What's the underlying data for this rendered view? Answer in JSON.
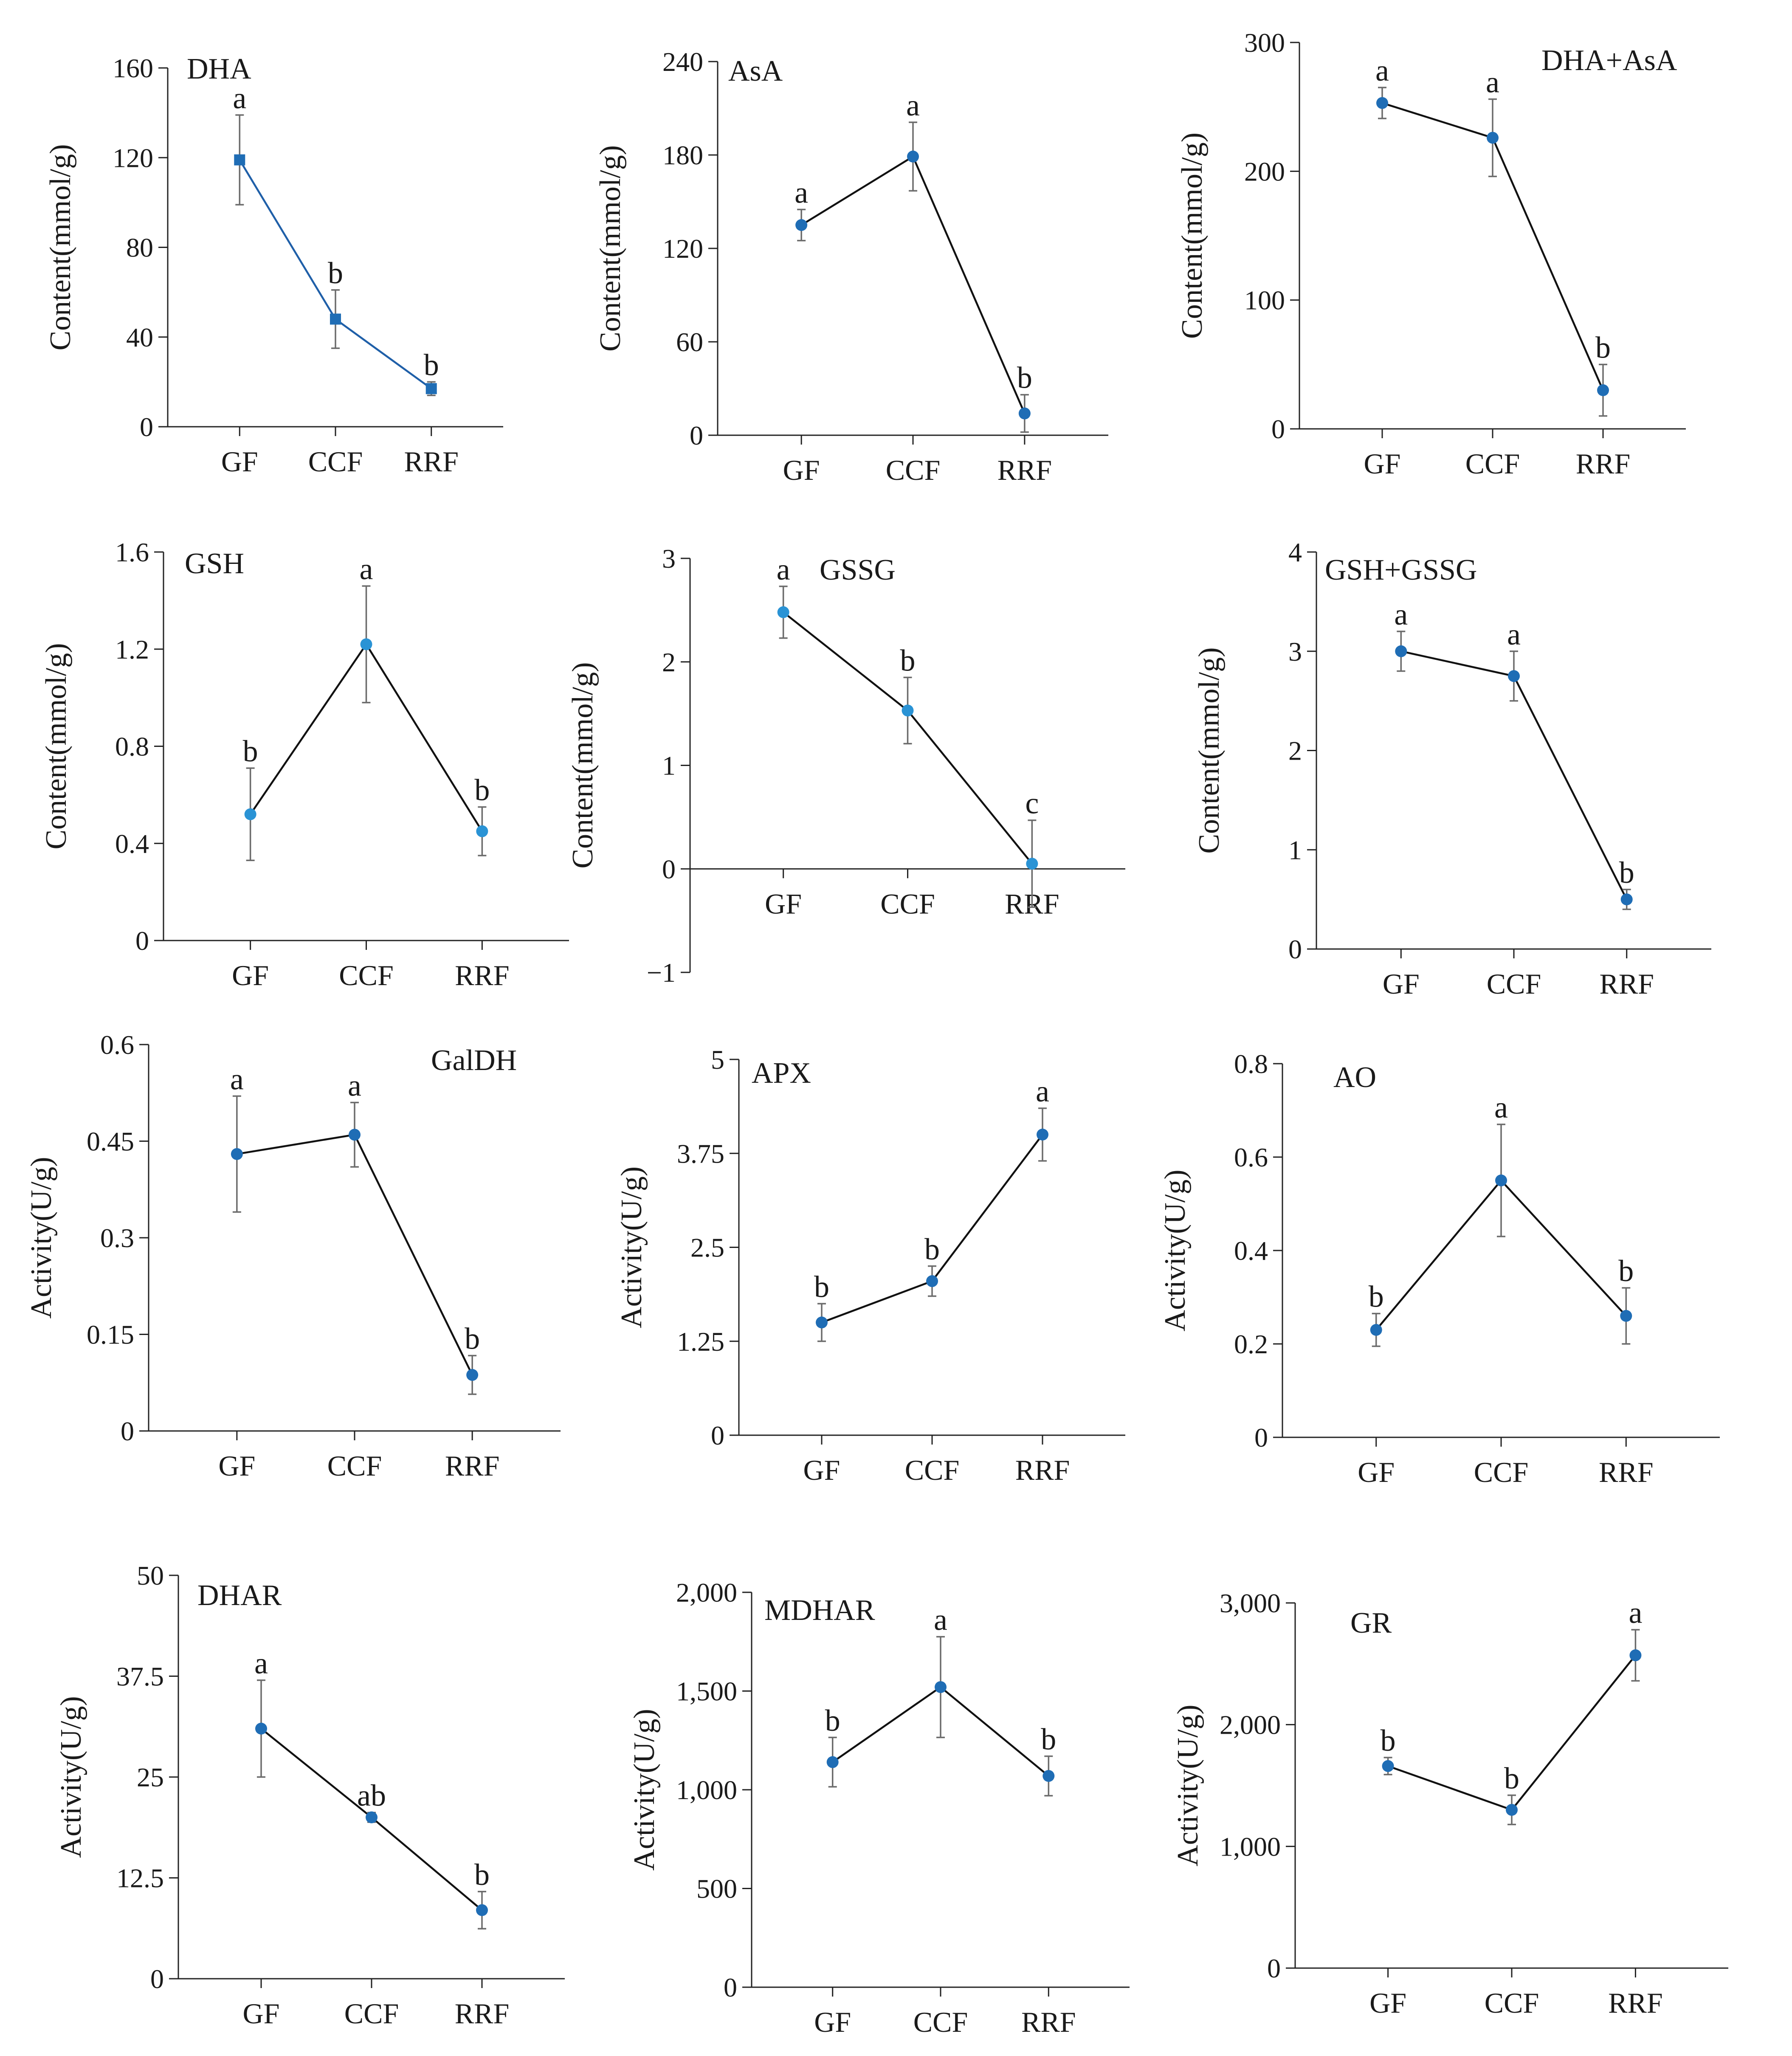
{
  "figure": {
    "chart_data": [
      {
        "type": "line",
        "title": "DHA",
        "xlabel": "",
        "ylabel": "Content(mmol/g)",
        "categories": [
          "GF",
          "CCF",
          "RRF"
        ],
        "values": [
          119,
          48,
          17
        ],
        "errors": [
          20,
          13,
          3
        ],
        "letters": [
          "a",
          "b",
          "b"
        ],
        "ylim": [
          0,
          160
        ],
        "yticks": [
          0,
          40,
          80,
          120,
          160
        ],
        "ytick_labels": [
          "0",
          "40",
          "80",
          "120",
          "160"
        ],
        "line_color": "#1f5fa8",
        "marker": "square",
        "grid": false
      },
      {
        "type": "line",
        "title": "AsA",
        "xlabel": "",
        "ylabel": "Content(mmol/g)",
        "categories": [
          "GF",
          "CCF",
          "RRF"
        ],
        "values": [
          135,
          179,
          14
        ],
        "errors": [
          10,
          22,
          12
        ],
        "letters": [
          "a",
          "a",
          "b"
        ],
        "ylim": [
          0,
          240
        ],
        "yticks": [
          0,
          60,
          120,
          180,
          240
        ],
        "ytick_labels": [
          "0",
          "60",
          "120",
          "180",
          "240"
        ],
        "line_color": "#111111",
        "marker": "circle",
        "grid": false
      },
      {
        "type": "line",
        "title": "DHA+AsA",
        "xlabel": "",
        "ylabel": "Content(mmol/g)",
        "categories": [
          "GF",
          "CCF",
          "RRF"
        ],
        "values": [
          253,
          226,
          30
        ],
        "errors": [
          12,
          30,
          20
        ],
        "letters": [
          "a",
          "a",
          "b"
        ],
        "ylim": [
          0,
          300
        ],
        "yticks": [
          0,
          100,
          200,
          300
        ],
        "ytick_labels": [
          "0",
          "100",
          "200",
          "300"
        ],
        "line_color": "#111111",
        "marker": "circle",
        "grid": false
      },
      {
        "type": "line",
        "title": "GSH",
        "xlabel": "",
        "ylabel": "Content(mmol/g)",
        "categories": [
          "GF",
          "CCF",
          "RRF"
        ],
        "values": [
          0.52,
          1.22,
          0.45
        ],
        "errors": [
          0.19,
          0.24,
          0.1
        ],
        "letters": [
          "b",
          "a",
          "b"
        ],
        "ylim": [
          0,
          1.6
        ],
        "yticks": [
          0,
          0.4,
          0.8,
          1.2,
          1.6
        ],
        "ytick_labels": [
          "0",
          "0.4",
          "0.8",
          "1.2",
          "1.6"
        ],
        "line_color": "#111111",
        "marker": "circle",
        "grid": false
      },
      {
        "type": "line",
        "title": "GSSG",
        "xlabel": "",
        "ylabel": "Content(mmol/g)",
        "categories": [
          "GF",
          "CCF",
          "RRF"
        ],
        "values": [
          2.48,
          1.53,
          0.05
        ],
        "errors": [
          0.25,
          0.32,
          0.42
        ],
        "letters": [
          "a",
          "b",
          "c"
        ],
        "ylim": [
          -1,
          3
        ],
        "x_axis_at_zero": true,
        "yticks": [
          -1,
          0,
          1,
          2,
          3
        ],
        "ytick_labels": [
          "−1",
          "0",
          "1",
          "2",
          "3"
        ],
        "line_color": "#111111",
        "marker": "circle",
        "grid": false
      },
      {
        "type": "line",
        "title": "GSH+GSSG",
        "xlabel": "",
        "ylabel": "Content(mmol/g)",
        "categories": [
          "GF",
          "CCF",
          "RRF"
        ],
        "values": [
          3.0,
          2.75,
          0.5
        ],
        "errors": [
          0.2,
          0.25,
          0.1
        ],
        "letters": [
          "a",
          "a",
          "b"
        ],
        "ylim": [
          0,
          4
        ],
        "yticks": [
          0,
          1,
          2,
          3,
          4
        ],
        "ytick_labels": [
          "0",
          "1",
          "2",
          "3",
          "4"
        ],
        "line_color": "#111111",
        "marker": "circle",
        "grid": false
      },
      {
        "type": "line",
        "title": "GalDH",
        "xlabel": "",
        "ylabel": "Activity(U/g)",
        "categories": [
          "GF",
          "CCF",
          "RRF"
        ],
        "values": [
          0.43,
          0.46,
          0.087
        ],
        "errors": [
          0.09,
          0.05,
          0.03
        ],
        "letters": [
          "a",
          "a",
          "b"
        ],
        "ylim": [
          0,
          0.6
        ],
        "yticks": [
          0,
          0.15,
          0.3,
          0.45,
          0.6
        ],
        "ytick_labels": [
          "0",
          "0.15",
          "0.3",
          "0.45",
          "0.6"
        ],
        "line_color": "#111111",
        "marker": "circle",
        "grid": false
      },
      {
        "type": "line",
        "title": "APX",
        "xlabel": "",
        "ylabel": "Activity(U/g)",
        "categories": [
          "GF",
          "CCF",
          "RRF"
        ],
        "values": [
          1.5,
          2.05,
          4.0
        ],
        "errors": [
          0.25,
          0.2,
          0.35
        ],
        "letters": [
          "b",
          "b",
          "a"
        ],
        "ylim": [
          0,
          5
        ],
        "yticks": [
          0,
          1.25,
          2.5,
          3.75,
          5
        ],
        "ytick_labels": [
          "0",
          "1.25",
          "2.5",
          "3.75",
          "5"
        ],
        "line_color": "#111111",
        "marker": "circle",
        "grid": false
      },
      {
        "type": "line",
        "title": "AO",
        "xlabel": "",
        "ylabel": "Activity(U/g)",
        "categories": [
          "GF",
          "CCF",
          "RRF"
        ],
        "values": [
          0.23,
          0.55,
          0.26
        ],
        "errors": [
          0.035,
          0.12,
          0.06
        ],
        "letters": [
          "b",
          "a",
          "b"
        ],
        "ylim": [
          0,
          0.8
        ],
        "yticks": [
          0,
          0.2,
          0.4,
          0.6,
          0.8
        ],
        "ytick_labels": [
          "0",
          "0.2",
          "0.4",
          "0.6",
          "0.8"
        ],
        "line_color": "#111111",
        "marker": "circle",
        "grid": false
      },
      {
        "type": "line",
        "title": "DHAR",
        "xlabel": "",
        "ylabel": "Activity(U/g)",
        "categories": [
          "GF",
          "CCF",
          "RRF"
        ],
        "values": [
          31,
          20,
          8.5
        ],
        "errors": [
          6,
          0.6,
          2.3
        ],
        "letters": [
          "a",
          "ab",
          "b"
        ],
        "ylim": [
          0,
          50
        ],
        "yticks": [
          0,
          12.5,
          25,
          37.5,
          50
        ],
        "ytick_labels": [
          "0",
          "12.5",
          "25",
          "37.5",
          "50"
        ],
        "line_color": "#111111",
        "marker": "circle",
        "grid": false
      },
      {
        "type": "line",
        "title": "MDHAR",
        "xlabel": "",
        "ylabel": "Activity(U/g)",
        "categories": [
          "GF",
          "CCF",
          "RRF"
        ],
        "values": [
          1140,
          1520,
          1070
        ],
        "errors": [
          125,
          255,
          100
        ],
        "letters": [
          "b",
          "a",
          "b"
        ],
        "ylim": [
          0,
          2000
        ],
        "yticks": [
          0,
          500,
          1000,
          1500,
          2000
        ],
        "ytick_labels": [
          "0",
          "500",
          "1,000",
          "1,500",
          "2,000"
        ],
        "line_color": "#111111",
        "marker": "circle",
        "grid": false
      },
      {
        "type": "line",
        "title": "GR",
        "xlabel": "",
        "ylabel": "Activity(U/g)",
        "categories": [
          "GF",
          "CCF",
          "RRF"
        ],
        "values": [
          1660,
          1300,
          2570
        ],
        "errors": [
          70,
          120,
          210
        ],
        "letters": [
          "b",
          "b",
          "a"
        ],
        "ylim": [
          0,
          3000
        ],
        "yticks": [
          0,
          1000,
          2000,
          3000
        ],
        "ytick_labels": [
          "0",
          "1,000",
          "2,000",
          "3,000"
        ],
        "line_color": "#111111",
        "marker": "circle",
        "grid": false
      }
    ],
    "colors": {
      "marker": "#1f6db5",
      "marker_light": "#2a93d5",
      "error_bar": "#6b6b6b",
      "axis": "#222222"
    }
  }
}
